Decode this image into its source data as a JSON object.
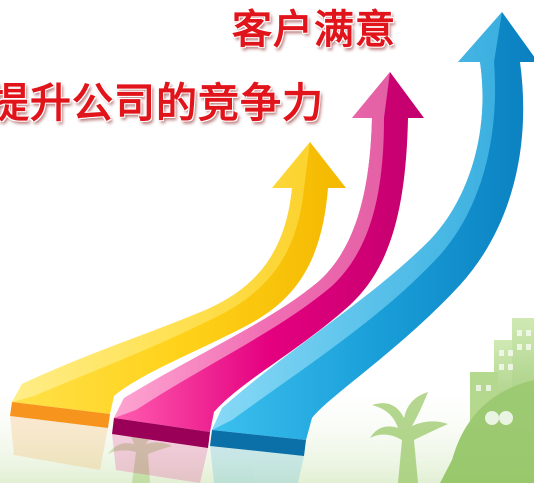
{
  "headlines": {
    "top": "客户满意",
    "main": "提升公司的竞争力"
  },
  "colors": {
    "headline_text": "#e2141b",
    "arrow_yellow": "#ffd21a",
    "arrow_orange": "#f7941d",
    "arrow_magenta": "#e4007f",
    "arrow_pink": "#f5a0c8",
    "arrow_blue": "#1a9fd9",
    "arrow_light_blue": "#5fd0f5",
    "foliage_green": "#9bc86a"
  },
  "icons": [
    "rising-arrow-icon",
    "tree-icon",
    "city-building-icon"
  ]
}
